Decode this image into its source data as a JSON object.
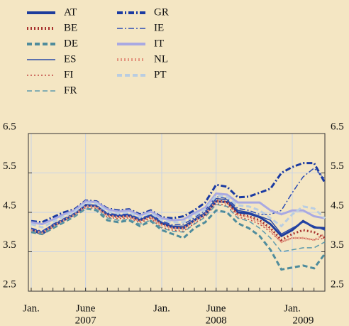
{
  "chart_data": {
    "type": "line",
    "x": [
      "2007-01",
      "2007-02",
      "2007-03",
      "2007-04",
      "2007-05",
      "2007-06",
      "2007-07",
      "2007-08",
      "2007-09",
      "2007-10",
      "2007-11",
      "2007-12",
      "2008-01",
      "2008-02",
      "2008-03",
      "2008-04",
      "2008-05",
      "2008-06",
      "2008-07",
      "2008-08",
      "2008-09",
      "2008-10",
      "2008-11",
      "2008-12",
      "2009-01",
      "2009-02",
      "2009-03",
      "2009-04"
    ],
    "xticks": [
      {
        "value": "2007-01",
        "label": "Jan."
      },
      {
        "value": "2007-06",
        "label": "June"
      },
      {
        "value": "2008-01",
        "label": "Jan."
      },
      {
        "value": "2008-06",
        "label": "June"
      },
      {
        "value": "2009-01",
        "label": "Jan."
      }
    ],
    "year_labels": [
      {
        "value": "2007-06",
        "label": "2007"
      },
      {
        "value": "2008-06",
        "label": "2008"
      },
      {
        "value": "2009-02",
        "label": "2009"
      }
    ],
    "ylim": [
      2.5,
      6.5
    ],
    "yticks": [
      2.5,
      3.5,
      4.5,
      5.5,
      6.5
    ],
    "y2lim": [
      2.5,
      6.5
    ],
    "y2ticks": [
      2.5,
      3.5,
      4.5,
      5.5,
      6.5
    ],
    "grid": true,
    "series": [
      {
        "name": "AT",
        "color": "#1d3c9c",
        "dash": "solid",
        "weight": "heavy",
        "values": [
          4.05,
          3.95,
          4.15,
          4.3,
          4.45,
          4.68,
          4.66,
          4.45,
          4.4,
          4.42,
          4.3,
          4.42,
          4.22,
          4.12,
          4.1,
          4.3,
          4.45,
          4.78,
          4.76,
          4.5,
          4.47,
          4.38,
          4.2,
          3.9,
          4.05,
          4.28,
          4.12,
          4.1
        ]
      },
      {
        "name": "BE",
        "color": "#a8322e",
        "dash": "dotted",
        "weight": "heavy",
        "values": [
          4.08,
          4.0,
          4.17,
          4.32,
          4.46,
          4.68,
          4.66,
          4.42,
          4.38,
          4.4,
          4.28,
          4.38,
          4.2,
          4.1,
          4.1,
          4.28,
          4.45,
          4.8,
          4.76,
          4.45,
          4.4,
          4.3,
          4.1,
          3.8,
          3.95,
          4.05,
          4.0,
          3.85
        ]
      },
      {
        "name": "DE",
        "color": "#4f8c9c",
        "dash": "dashed",
        "weight": "heavy",
        "values": [
          4.0,
          3.95,
          4.1,
          4.25,
          4.4,
          4.6,
          4.55,
          4.3,
          4.25,
          4.3,
          4.15,
          4.28,
          4.05,
          3.95,
          3.85,
          4.1,
          4.25,
          4.55,
          4.5,
          4.22,
          4.1,
          3.9,
          3.55,
          3.05,
          3.1,
          3.15,
          3.08,
          3.45
        ]
      },
      {
        "name": "ES",
        "color": "#2a4aa8",
        "dash": "solid",
        "weight": "light",
        "values": [
          4.08,
          4.0,
          4.18,
          4.32,
          4.46,
          4.7,
          4.68,
          4.46,
          4.42,
          4.44,
          4.32,
          4.42,
          4.25,
          4.15,
          4.15,
          4.32,
          4.5,
          4.85,
          4.82,
          4.55,
          4.5,
          4.4,
          4.3,
          3.95,
          4.1,
          4.25,
          4.15,
          4.05
        ]
      },
      {
        "name": "FI",
        "color": "#c24a44",
        "dash": "dotted",
        "weight": "light",
        "values": [
          4.02,
          3.96,
          4.12,
          4.28,
          4.42,
          4.62,
          4.6,
          4.38,
          4.34,
          4.36,
          4.24,
          4.34,
          4.12,
          4.05,
          4.02,
          4.22,
          4.4,
          4.72,
          4.68,
          4.38,
          4.32,
          4.2,
          4.0,
          3.75,
          3.85,
          3.85,
          3.8,
          3.85
        ]
      },
      {
        "name": "FR",
        "color": "#5d9aac",
        "dash": "dashed",
        "weight": "light",
        "values": [
          4.02,
          3.96,
          4.12,
          4.26,
          4.4,
          4.6,
          4.58,
          4.36,
          4.3,
          4.32,
          4.2,
          4.3,
          4.1,
          4.02,
          4.0,
          4.2,
          4.38,
          4.7,
          4.65,
          4.35,
          4.28,
          4.1,
          3.85,
          3.5,
          3.55,
          3.6,
          3.6,
          3.75
        ]
      },
      {
        "name": "GR",
        "color": "#1a3aa2",
        "dash": "dashdot",
        "weight": "heavy",
        "values": [
          4.28,
          4.25,
          4.38,
          4.5,
          4.58,
          4.8,
          4.78,
          4.6,
          4.55,
          4.58,
          4.45,
          4.55,
          4.38,
          4.35,
          4.4,
          4.55,
          4.75,
          5.2,
          5.15,
          4.88,
          4.9,
          5.0,
          5.1,
          5.5,
          5.65,
          5.75,
          5.75,
          5.25
        ]
      },
      {
        "name": "IE",
        "color": "#2c4cb4",
        "dash": "dashdot",
        "weight": "light",
        "values": [
          4.1,
          4.02,
          4.2,
          4.34,
          4.48,
          4.7,
          4.68,
          4.48,
          4.44,
          4.46,
          4.34,
          4.45,
          4.28,
          4.18,
          4.2,
          4.36,
          4.55,
          4.9,
          4.85,
          4.6,
          4.55,
          4.45,
          4.45,
          4.55,
          5.0,
          5.4,
          5.62,
          5.35
        ]
      },
      {
        "name": "IT",
        "color": "#a9a9e2",
        "dash": "solid",
        "weight": "heavy",
        "values": [
          4.25,
          4.2,
          4.32,
          4.45,
          4.55,
          4.78,
          4.76,
          4.58,
          4.52,
          4.55,
          4.42,
          4.52,
          4.35,
          4.3,
          4.32,
          4.48,
          4.62,
          4.98,
          4.95,
          4.75,
          4.75,
          4.75,
          4.55,
          4.45,
          4.55,
          4.55,
          4.4,
          4.35
        ]
      },
      {
        "name": "NL",
        "color": "#e3957f",
        "dash": "dotted",
        "weight": "heavy",
        "values": [
          4.05,
          3.98,
          4.15,
          4.3,
          4.44,
          4.66,
          4.64,
          4.42,
          4.38,
          4.4,
          4.28,
          4.38,
          4.18,
          4.1,
          4.08,
          4.28,
          4.45,
          4.78,
          4.74,
          4.44,
          4.38,
          4.25,
          4.05,
          3.75,
          3.85,
          3.85,
          3.8,
          3.95
        ]
      },
      {
        "name": "PT",
        "color": "#b9cde2",
        "dash": "dashed",
        "weight": "heavy",
        "values": [
          4.2,
          4.12,
          4.26,
          4.4,
          4.52,
          4.74,
          4.72,
          4.52,
          4.48,
          4.5,
          4.38,
          4.48,
          4.3,
          4.25,
          4.25,
          4.42,
          4.58,
          4.92,
          4.9,
          4.68,
          4.65,
          4.55,
          4.35,
          4.15,
          4.45,
          4.65,
          4.6,
          4.35
        ]
      }
    ]
  }
}
